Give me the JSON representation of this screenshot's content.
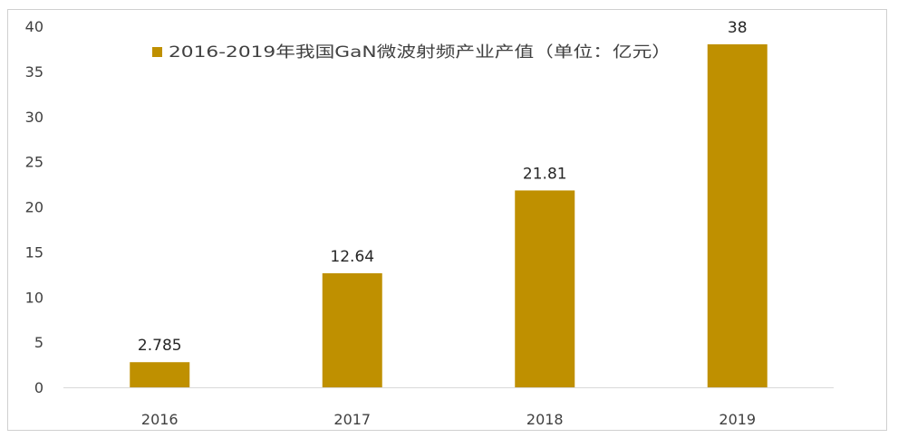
{
  "chart_data": {
    "type": "bar",
    "categories": [
      "2016",
      "2017",
      "2018",
      "2019"
    ],
    "series": [
      {
        "name": "2016-2019年我国GaN微波射频产业产值（单位：亿元）",
        "values": [
          2.785,
          12.64,
          21.81,
          38
        ],
        "labels": [
          "2.785",
          "12.64",
          "21.81",
          "38"
        ],
        "color": "#bf9000"
      }
    ],
    "ylim": [
      0,
      40
    ],
    "yticks": [
      "0",
      "5",
      "10",
      "15",
      "20",
      "25",
      "30",
      "35",
      "40"
    ],
    "grid": false,
    "legend_position": "top-center"
  }
}
